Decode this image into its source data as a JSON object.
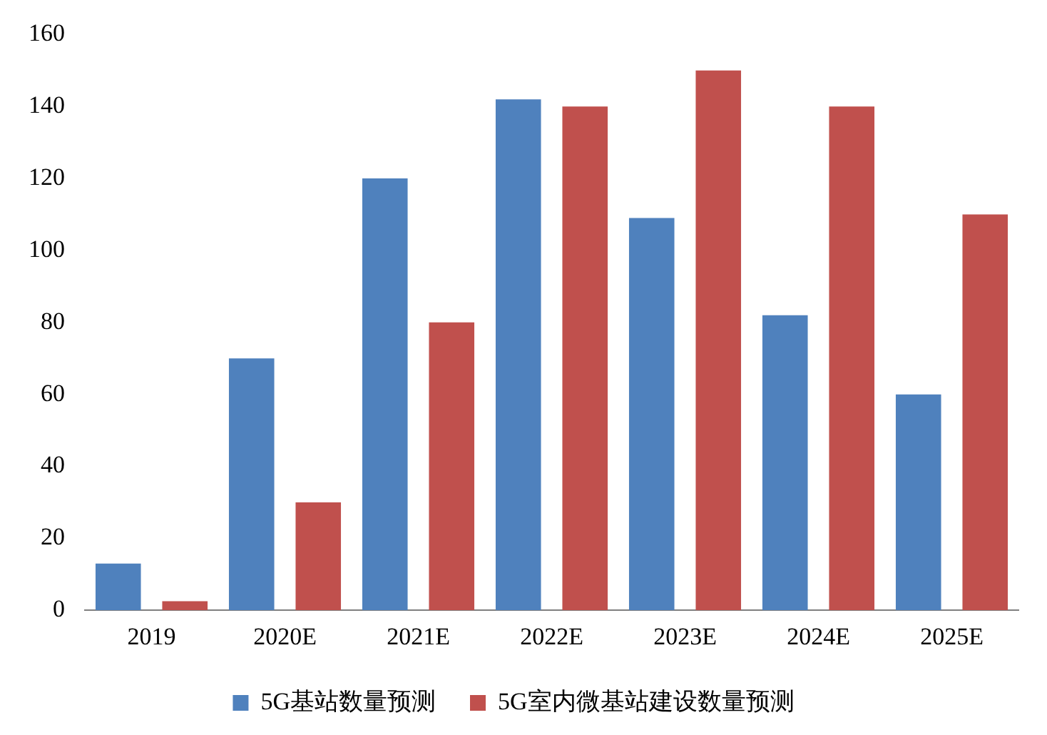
{
  "chart_data": {
    "type": "bar",
    "categories": [
      "2019",
      "2020E",
      "2021E",
      "2022E",
      "2023E",
      "2024E",
      "2025E"
    ],
    "series": [
      {
        "name": "5G基站数量预测",
        "color": "#4f81bd",
        "values": [
          13,
          70,
          120,
          142,
          109,
          82,
          60
        ]
      },
      {
        "name": "5G室内微基站建设数量预测",
        "color": "#c0504d",
        "values": [
          2.5,
          30,
          80,
          140,
          150,
          140,
          110
        ]
      }
    ],
    "ylim": [
      0,
      160
    ],
    "yticks": [
      0,
      20,
      40,
      60,
      80,
      100,
      120,
      140,
      160
    ],
    "grid": false,
    "legend": "bottom"
  }
}
